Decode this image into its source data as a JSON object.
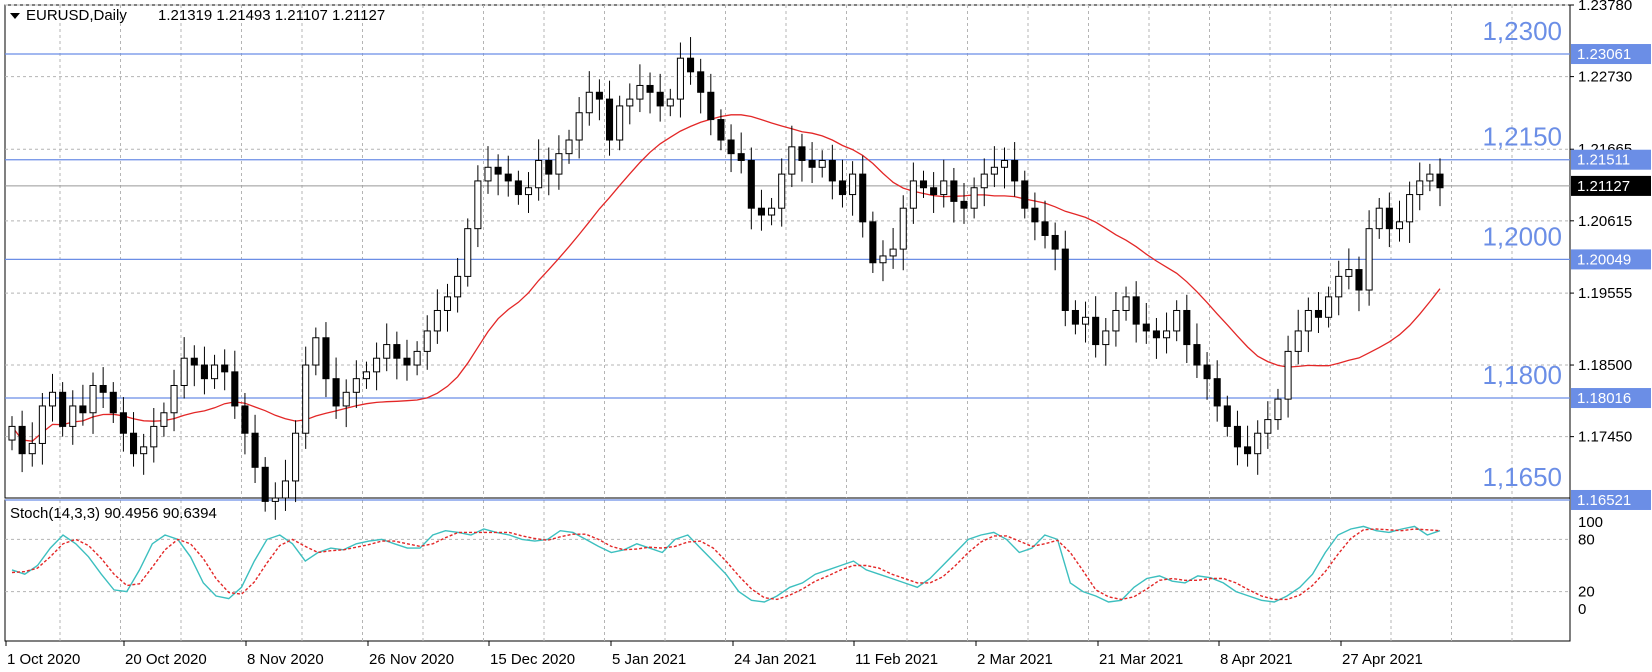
{
  "header": {
    "symbol": "EURUSD,Daily",
    "ohlc": "1.21319 1.21493 1.21107 1.21127"
  },
  "price_axis_labels": [
    "1.23780",
    "1.22730",
    "1.21665",
    "1.20615",
    "1.19555",
    "1.18500",
    "1.17450"
  ],
  "levels": [
    {
      "label": "1,2300",
      "tag": "1.23061",
      "price": 1.23061
    },
    {
      "label": "1,2150",
      "tag": "1.21511",
      "price": 1.21511
    },
    {
      "label": "1,2000",
      "tag": "1.20049",
      "price": 1.20049
    },
    {
      "label": "1,1800",
      "tag": "1.18016",
      "price": 1.18016
    },
    {
      "label": "1,1650",
      "tag": "1.16521",
      "price": 1.16521
    }
  ],
  "current_price": {
    "tag": "1.21127",
    "price": 1.21127
  },
  "stoch": {
    "label": "Stoch(14,3,3) 90.4956 90.6394",
    "levels": [
      "100",
      "80",
      "20",
      "0"
    ]
  },
  "date_labels": [
    "1 Oct 2020",
    "20 Oct 2020",
    "8 Nov 2020",
    "26 Nov 2020",
    "15 Dec 2020",
    "5 Jan 2021",
    "24 Jan 2021",
    "11 Feb 2021",
    "2 Mar 2021",
    "21 Mar 2021",
    "8 Apr 2021",
    "27 Apr 2021"
  ],
  "colors": {
    "level_line": "#6b8ee6",
    "ma": "#e32727",
    "stoch_main": "#3cbfbf",
    "stoch_signal": "#e32727",
    "current_tag": "#000000"
  },
  "chart_data": {
    "type": "candlestick",
    "title": "EURUSD,Daily",
    "ylim": [
      1.1655,
      1.2378
    ],
    "closes": [
      1.176,
      1.172,
      1.1735,
      1.179,
      1.181,
      1.176,
      1.179,
      1.178,
      1.182,
      1.181,
      1.178,
      1.175,
      1.172,
      1.173,
      1.176,
      1.178,
      1.182,
      1.186,
      1.185,
      1.183,
      1.185,
      1.184,
      1.179,
      1.175,
      1.17,
      1.165,
      1.1655,
      1.168,
      1.175,
      1.185,
      1.189,
      1.183,
      1.179,
      1.181,
      1.183,
      1.184,
      1.186,
      1.188,
      1.186,
      1.185,
      1.187,
      1.19,
      1.193,
      1.195,
      1.198,
      1.205,
      1.212,
      1.214,
      1.213,
      1.212,
      1.21,
      1.211,
      1.215,
      1.213,
      1.216,
      1.218,
      1.222,
      1.225,
      1.224,
      1.218,
      1.223,
      1.224,
      1.226,
      1.225,
      1.223,
      1.224,
      1.23,
      1.228,
      1.225,
      1.221,
      1.218,
      1.216,
      1.215,
      1.208,
      1.207,
      1.208,
      1.213,
      1.217,
      1.215,
      1.214,
      1.215,
      1.212,
      1.21,
      1.213,
      1.206,
      1.2,
      1.201,
      1.202,
      1.208,
      1.212,
      1.211,
      1.21,
      1.212,
      1.209,
      1.208,
      1.211,
      1.213,
      1.214,
      1.215,
      1.212,
      1.208,
      1.206,
      1.204,
      1.202,
      1.193,
      1.191,
      1.192,
      1.188,
      1.19,
      1.193,
      1.195,
      1.191,
      1.19,
      1.189,
      1.19,
      1.193,
      1.188,
      1.185,
      1.183,
      1.179,
      1.176,
      1.173,
      1.172,
      1.175,
      1.177,
      1.18,
      1.187,
      1.19,
      1.193,
      1.192,
      1.195,
      1.198,
      1.199,
      1.196,
      1.205,
      1.208,
      1.205,
      1.206,
      1.21,
      1.212,
      1.213,
      1.211
    ],
    "ma_period": 50,
    "stoch_k": [
      45,
      40,
      50,
      70,
      85,
      75,
      60,
      40,
      22,
      20,
      45,
      75,
      85,
      80,
      60,
      30,
      15,
      12,
      25,
      55,
      80,
      85,
      75,
      55,
      65,
      70,
      68,
      75,
      78,
      80,
      75,
      70,
      70,
      85,
      90,
      88,
      85,
      92,
      88,
      85,
      80,
      78,
      80,
      90,
      88,
      80,
      72,
      65,
      68,
      75,
      70,
      65,
      80,
      85,
      70,
      55,
      40,
      20,
      10,
      8,
      15,
      25,
      30,
      40,
      45,
      50,
      55,
      45,
      40,
      35,
      30,
      25,
      35,
      50,
      65,
      80,
      85,
      88,
      80,
      65,
      70,
      85,
      80,
      30,
      20,
      15,
      8,
      10,
      25,
      35,
      38,
      32,
      30,
      38,
      36,
      30,
      20,
      15,
      10,
      8,
      15,
      25,
      40,
      65,
      85,
      92,
      95,
      90,
      88,
      92,
      95,
      85,
      90
    ],
    "stoch_d": [
      42,
      43,
      47,
      60,
      75,
      80,
      73,
      58,
      40,
      27,
      29,
      48,
      68,
      80,
      75,
      58,
      35,
      19,
      17,
      31,
      53,
      73,
      80,
      72,
      65,
      67,
      68,
      71,
      74,
      78,
      78,
      75,
      72,
      75,
      82,
      88,
      88,
      88,
      88,
      88,
      84,
      81,
      79,
      83,
      86,
      86,
      80,
      72,
      68,
      69,
      71,
      70,
      72,
      77,
      78,
      70,
      55,
      38,
      23,
      13,
      11,
      16,
      23,
      32,
      38,
      45,
      50,
      50,
      47,
      40,
      35,
      30,
      30,
      37,
      50,
      65,
      77,
      84,
      84,
      78,
      72,
      75,
      79,
      65,
      44,
      22,
      14,
      11,
      14,
      23,
      33,
      35,
      33,
      33,
      35,
      35,
      30,
      22,
      15,
      11,
      11,
      16,
      27,
      43,
      63,
      81,
      91,
      92,
      91,
      90,
      92,
      91,
      90
    ]
  }
}
